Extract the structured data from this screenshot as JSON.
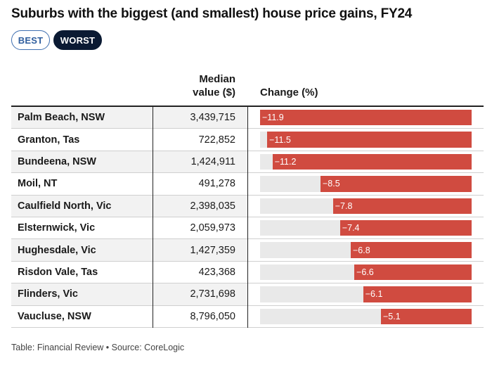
{
  "title": "Suburbs with the biggest (and smallest) house price gains, FY24",
  "toggles": {
    "best": "BEST",
    "worst": "WORST",
    "selected": "WORST"
  },
  "headers": {
    "median_line1": "Median",
    "median_line2": "value ($)",
    "change": "Change (%)"
  },
  "footer": "Table: Financial Review • Source: CoreLogic",
  "colors": {
    "bar": "#d04b40",
    "track": "#e9e9e9",
    "active_toggle": "#0b1a33",
    "best_toggle": "#2f5e9e"
  },
  "chart_data": {
    "type": "table",
    "columns": [
      "Median value ($)",
      "Change (%)"
    ],
    "bar_max_abs": 11.9,
    "rows": [
      {
        "suburb": "Palm Beach, NSW",
        "median": "3,439,715",
        "change": -11.9,
        "change_label": "−11.9"
      },
      {
        "suburb": "Granton, Tas",
        "median": "722,852",
        "change": -11.5,
        "change_label": "−11.5"
      },
      {
        "suburb": "Bundeena, NSW",
        "median": "1,424,911",
        "change": -11.2,
        "change_label": "−11.2"
      },
      {
        "suburb": "Moil, NT",
        "median": "491,278",
        "change": -8.5,
        "change_label": "−8.5"
      },
      {
        "suburb": "Caulfield North, Vic",
        "median": "2,398,035",
        "change": -7.8,
        "change_label": "−7.8"
      },
      {
        "suburb": "Elsternwick, Vic",
        "median": "2,059,973",
        "change": -7.4,
        "change_label": "−7.4"
      },
      {
        "suburb": "Hughesdale, Vic",
        "median": "1,427,359",
        "change": -6.8,
        "change_label": "−6.8"
      },
      {
        "suburb": "Risdon Vale, Tas",
        "median": "423,368",
        "change": -6.6,
        "change_label": "−6.6"
      },
      {
        "suburb": "Flinders, Vic",
        "median": "2,731,698",
        "change": -6.1,
        "change_label": "−6.1"
      },
      {
        "suburb": "Vaucluse, NSW",
        "median": "8,796,050",
        "change": -5.1,
        "change_label": "−5.1"
      }
    ]
  }
}
